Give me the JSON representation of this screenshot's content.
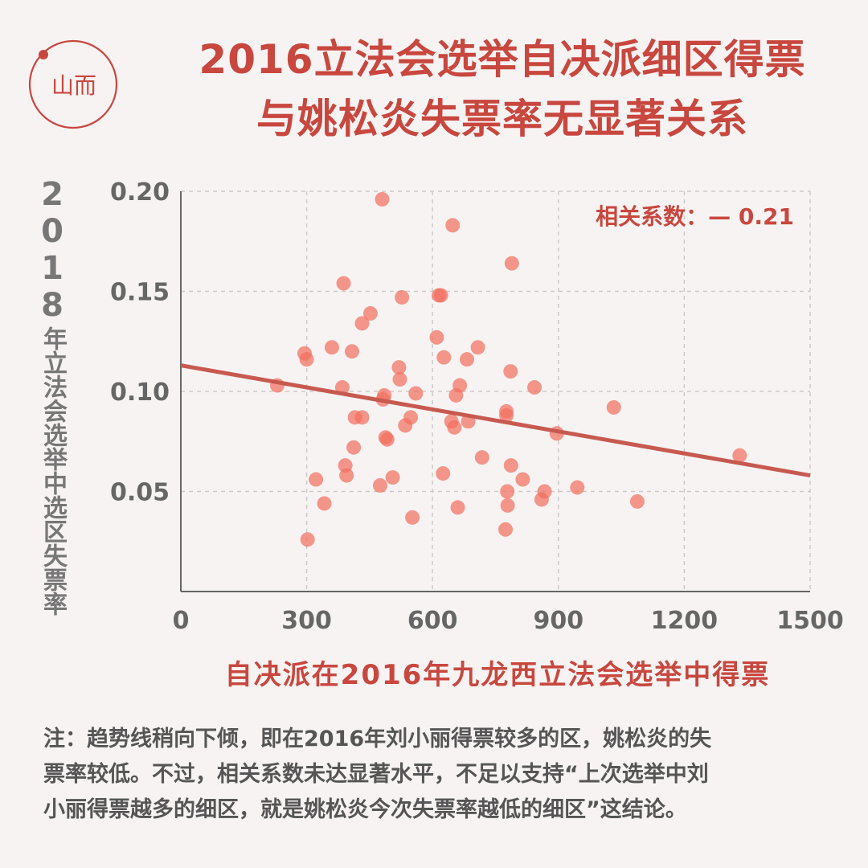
{
  "title_line1": "2016立法会选举自决派细区得票",
  "title_line2": "与姚松炎失票率无显著关系",
  "logo_text": "山而",
  "ylabel_year_digits": [
    "2",
    "0",
    "1",
    "8"
  ],
  "ylabel_rest": "年立法会选举中选区失票率",
  "corr_label": "相关系数：— 0.21",
  "note_lines": [
    "注：趋势线稍向下倾，即在2016年刘小丽得票较多的区，姚松炎的失",
    "票率较低。不过，相关系数未达显著水平，不足以支持“上次选举中刘",
    "小丽得票越多的细区，就是姚松炎今次失票率越低的细区”这结论。"
  ],
  "colors": {
    "accent": "#c8473e",
    "point": "#f2705f",
    "trend": "#c75a50",
    "grid": "#cfcaca",
    "axis": "#666666",
    "background": "#f7f3f3"
  },
  "chart_data": {
    "type": "scatter",
    "xlabel": "自决派在2016年九龙西立法会选举中得票",
    "ylabel": "2018年立法会选举中选区失票率",
    "xlim": [
      0,
      1500
    ],
    "ylim": [
      0,
      0.2
    ],
    "x_ticks": [
      0,
      300,
      600,
      900,
      1200,
      1500
    ],
    "x_tick_labels": [
      "0",
      "300",
      "600",
      "900",
      "1200",
      "1500"
    ],
    "y_ticks": [
      0.05,
      0.1,
      0.15,
      0.2
    ],
    "y_tick_labels": [
      "0.05",
      "0.10",
      "0.15",
      "0.20"
    ],
    "grid": true,
    "correlation": -0.21,
    "trendline": {
      "x": [
        0,
        1500
      ],
      "y": [
        0.113,
        0.058
      ]
    },
    "points": [
      [
        230,
        0.103
      ],
      [
        295,
        0.119
      ],
      [
        300,
        0.116
      ],
      [
        302,
        0.026
      ],
      [
        322,
        0.056
      ],
      [
        342,
        0.044
      ],
      [
        360,
        0.122
      ],
      [
        385,
        0.102
      ],
      [
        388,
        0.154
      ],
      [
        392,
        0.063
      ],
      [
        395,
        0.058
      ],
      [
        408,
        0.12
      ],
      [
        412,
        0.072
      ],
      [
        415,
        0.087
      ],
      [
        432,
        0.134
      ],
      [
        432,
        0.087
      ],
      [
        452,
        0.139
      ],
      [
        475,
        0.053
      ],
      [
        480,
        0.196
      ],
      [
        482,
        0.096
      ],
      [
        485,
        0.098
      ],
      [
        488,
        0.077
      ],
      [
        492,
        0.076
      ],
      [
        505,
        0.057
      ],
      [
        520,
        0.112
      ],
      [
        522,
        0.106
      ],
      [
        527,
        0.147
      ],
      [
        535,
        0.083
      ],
      [
        548,
        0.087
      ],
      [
        552,
        0.037
      ],
      [
        560,
        0.099
      ],
      [
        610,
        0.127
      ],
      [
        615,
        0.148
      ],
      [
        620,
        0.148
      ],
      [
        625,
        0.059
      ],
      [
        627,
        0.117
      ],
      [
        645,
        0.085
      ],
      [
        648,
        0.183
      ],
      [
        652,
        0.082
      ],
      [
        656,
        0.098
      ],
      [
        660,
        0.042
      ],
      [
        665,
        0.103
      ],
      [
        682,
        0.116
      ],
      [
        685,
        0.085
      ],
      [
        708,
        0.122
      ],
      [
        718,
        0.067
      ],
      [
        774,
        0.031
      ],
      [
        776,
        0.09
      ],
      [
        776,
        0.088
      ],
      [
        778,
        0.05
      ],
      [
        779,
        0.043
      ],
      [
        786,
        0.11
      ],
      [
        787,
        0.063
      ],
      [
        789,
        0.164
      ],
      [
        815,
        0.056
      ],
      [
        843,
        0.102
      ],
      [
        860,
        0.046
      ],
      [
        867,
        0.05
      ],
      [
        896,
        0.079
      ],
      [
        945,
        0.052
      ],
      [
        1032,
        0.092
      ],
      [
        1088,
        0.045
      ],
      [
        1332,
        0.068
      ]
    ]
  }
}
